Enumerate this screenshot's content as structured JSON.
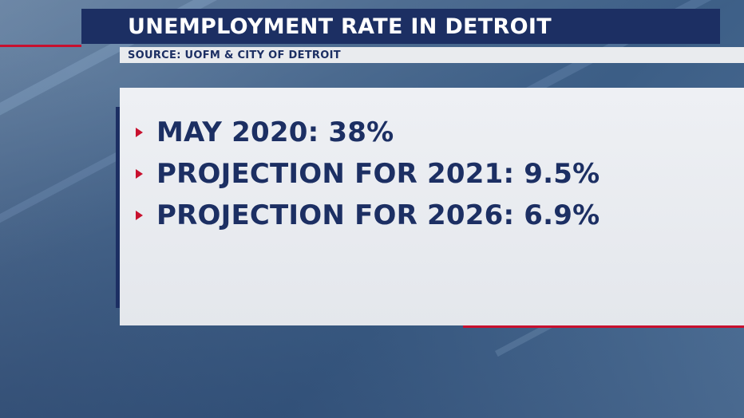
{
  "header": {
    "title": "UNEMPLOYMENT RATE IN DETROIT",
    "source": "SOURCE: UOFM & CITY OF DETROIT"
  },
  "bullets": [
    {
      "text": "MAY 2020: 38%"
    },
    {
      "text": "PROJECTION FOR 2021: 9.5%"
    },
    {
      "text": "PROJECTION FOR 2026: 6.9%"
    }
  ],
  "colors": {
    "navy": "#1c2f63",
    "accent_red": "#c8102e",
    "panel": "#e9ebee"
  }
}
